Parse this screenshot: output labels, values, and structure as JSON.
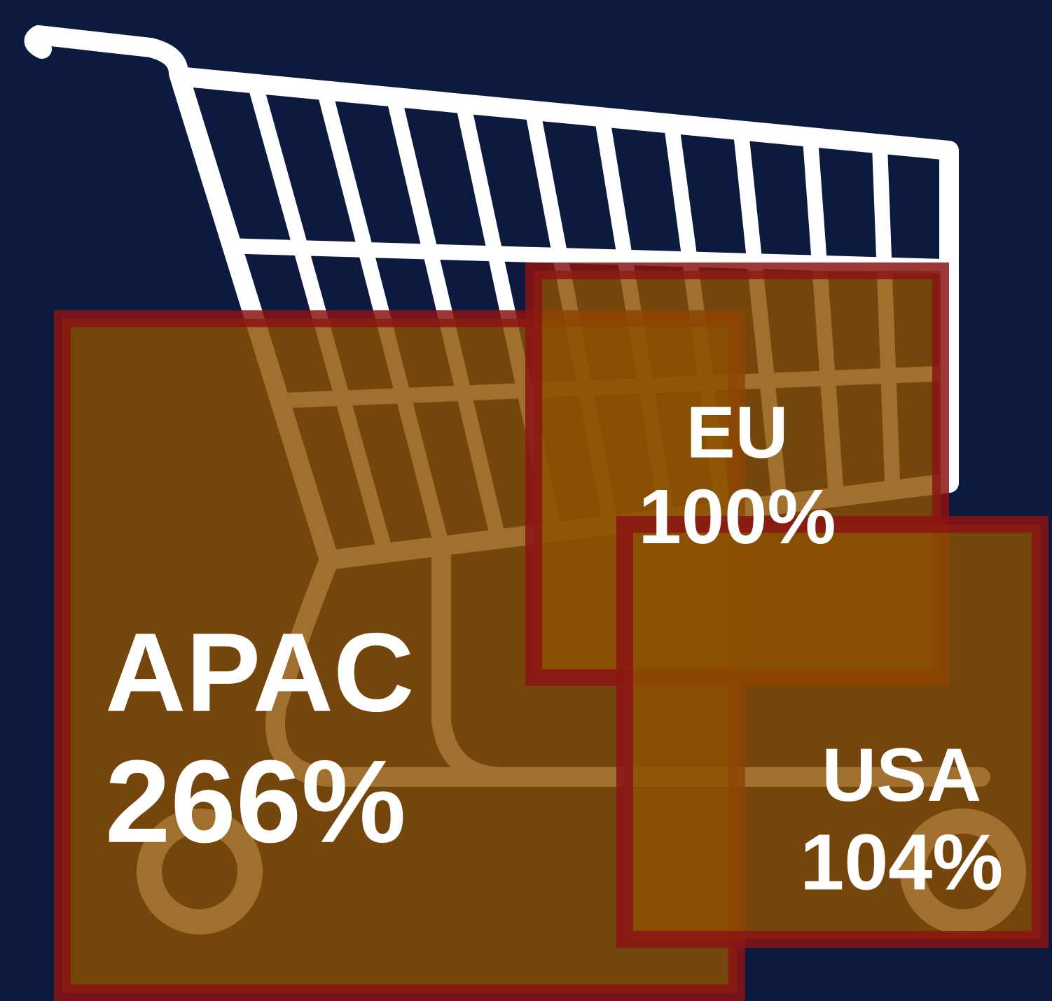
{
  "chart_data": {
    "type": "square",
    "categories": [
      "APAC",
      "EU",
      "USA"
    ],
    "values": [
      266,
      100,
      104
    ],
    "value_labels": [
      "266%",
      "100%",
      "104%"
    ],
    "color": "#8c5000",
    "edge_color": "#8b1414"
  }
}
